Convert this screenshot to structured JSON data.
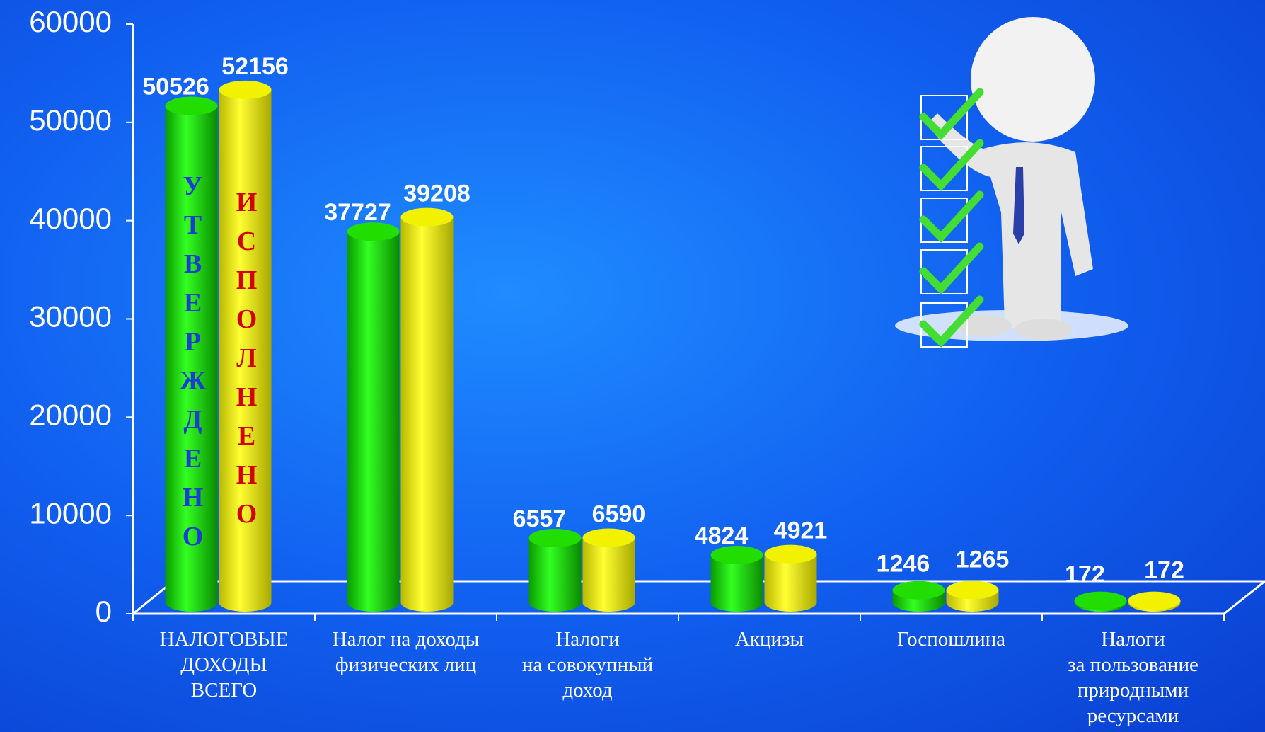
{
  "chart_data": {
    "type": "bar",
    "categories": [
      "НАЛОГОВЫЕ\nДОХОДЫ\nВСЕГО",
      "Налог на доходы\nфизических лиц",
      "Налоги\nна совокупный\nдоход",
      "Акцизы",
      "Госпошлина",
      "Налоги\nза пользование\nприродными\nресурсами"
    ],
    "series": [
      {
        "name": "УТВЕРЖДЕНО",
        "color": "#22dd00",
        "text_color": "#1a3fd0",
        "values": [
          50526,
          37727,
          6557,
          4824,
          1246,
          172
        ]
      },
      {
        "name": "ИСПОЛНЕНО",
        "color": "#f2f200",
        "text_color": "#d40000",
        "values": [
          52156,
          39208,
          6590,
          4921,
          1265,
          172
        ]
      }
    ],
    "ylim": [
      0,
      60000
    ],
    "yticks": [
      0,
      10000,
      20000,
      30000,
      40000,
      50000,
      60000
    ]
  }
}
